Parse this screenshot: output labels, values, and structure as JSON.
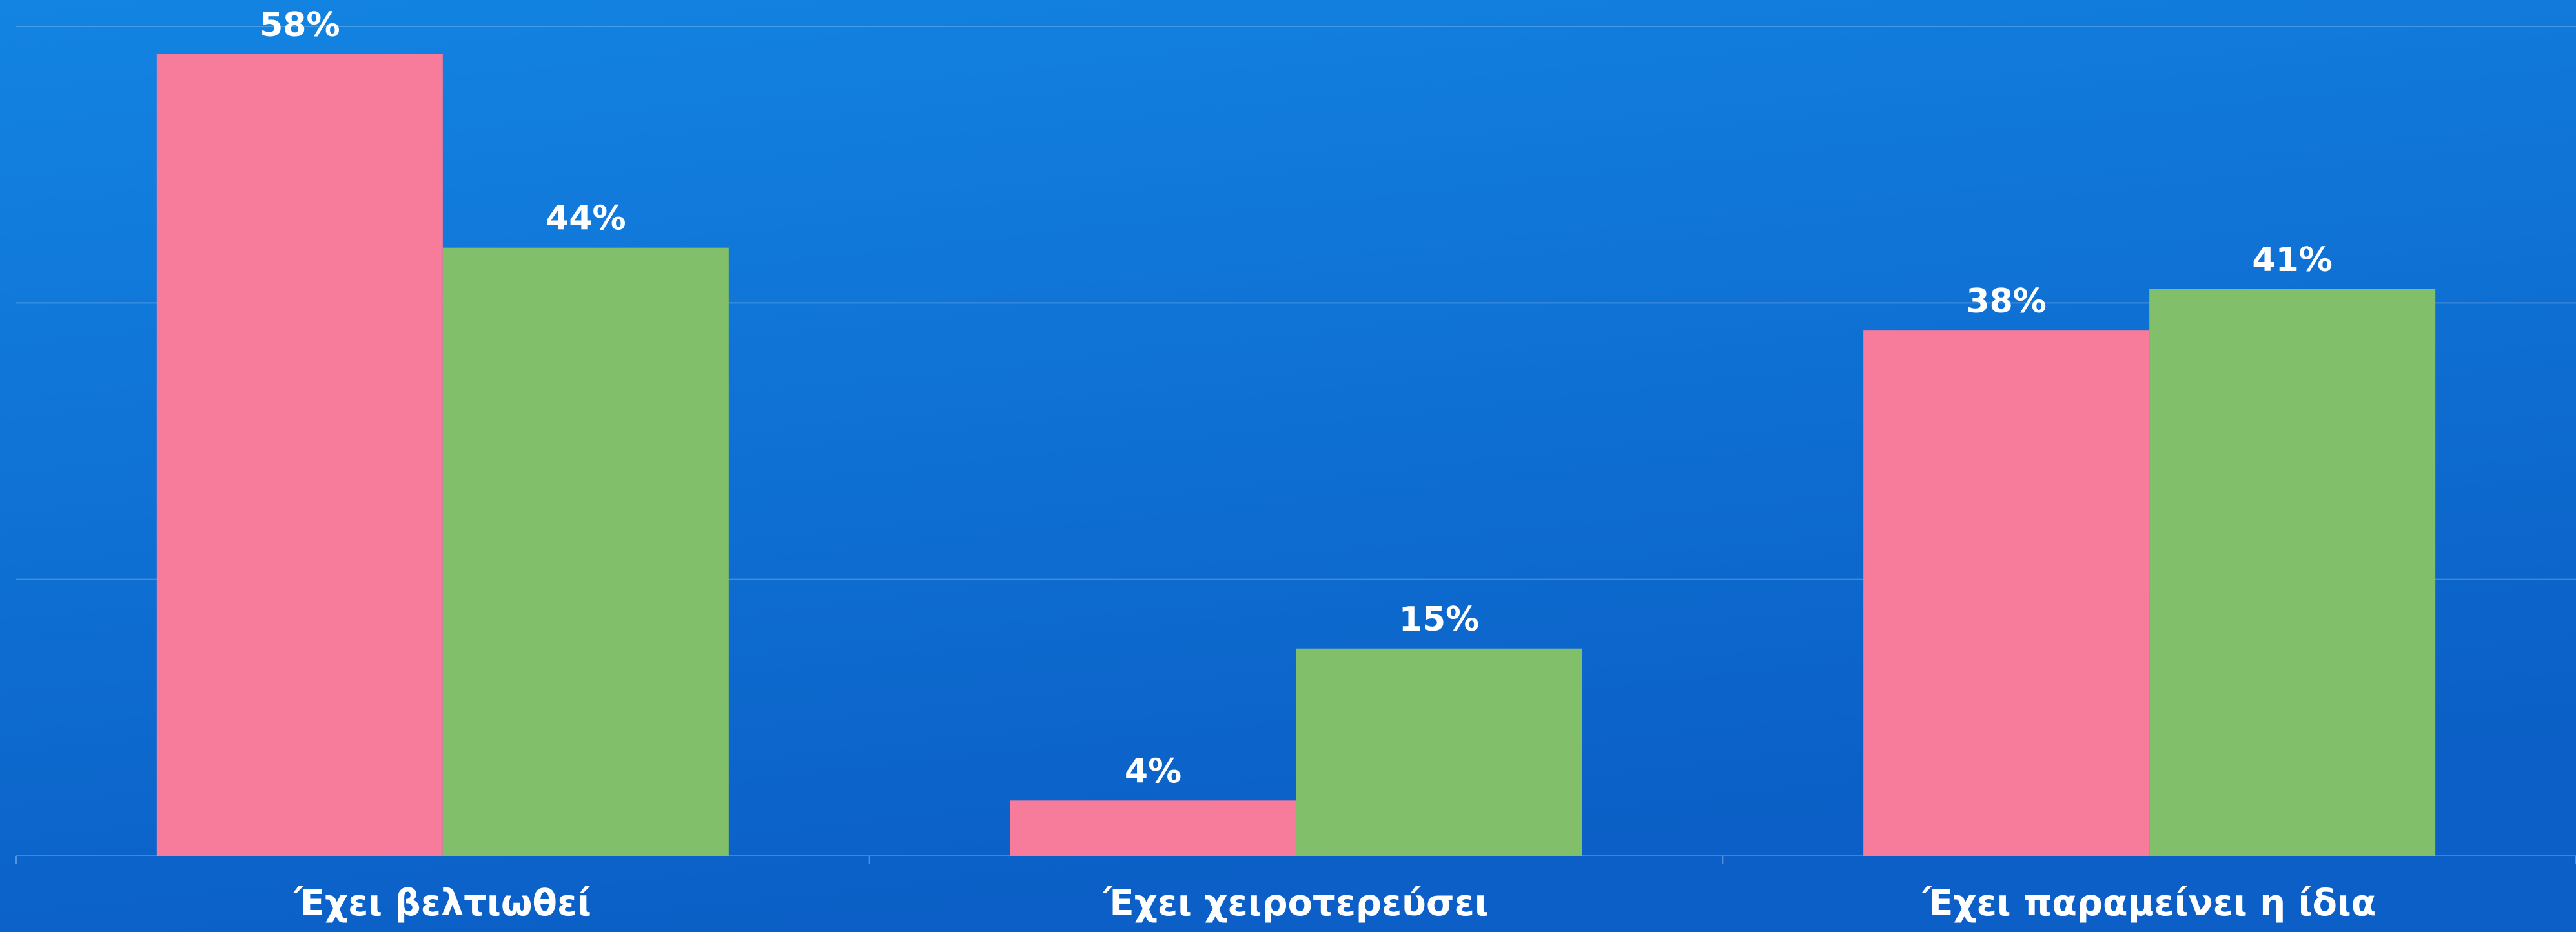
{
  "chart_data": {
    "type": "bar",
    "categories": [
      "Έχει βελτιωθεί",
      "Έχει χειροτερεύσει",
      "Έχει παραμείνει η ίδια"
    ],
    "series": [
      {
        "color": "#f77b9a",
        "values": [
          58,
          4,
          38
        ],
        "value_labels": [
          "58%",
          "4%",
          "38%"
        ]
      },
      {
        "color": "#82bf6a",
        "values": [
          44,
          15,
          41
        ],
        "value_labels": [
          "44%",
          "15%",
          "41%"
        ]
      }
    ],
    "ylim": [
      0,
      60
    ],
    "yticks": [
      0,
      20,
      40,
      60
    ],
    "grid": true
  }
}
